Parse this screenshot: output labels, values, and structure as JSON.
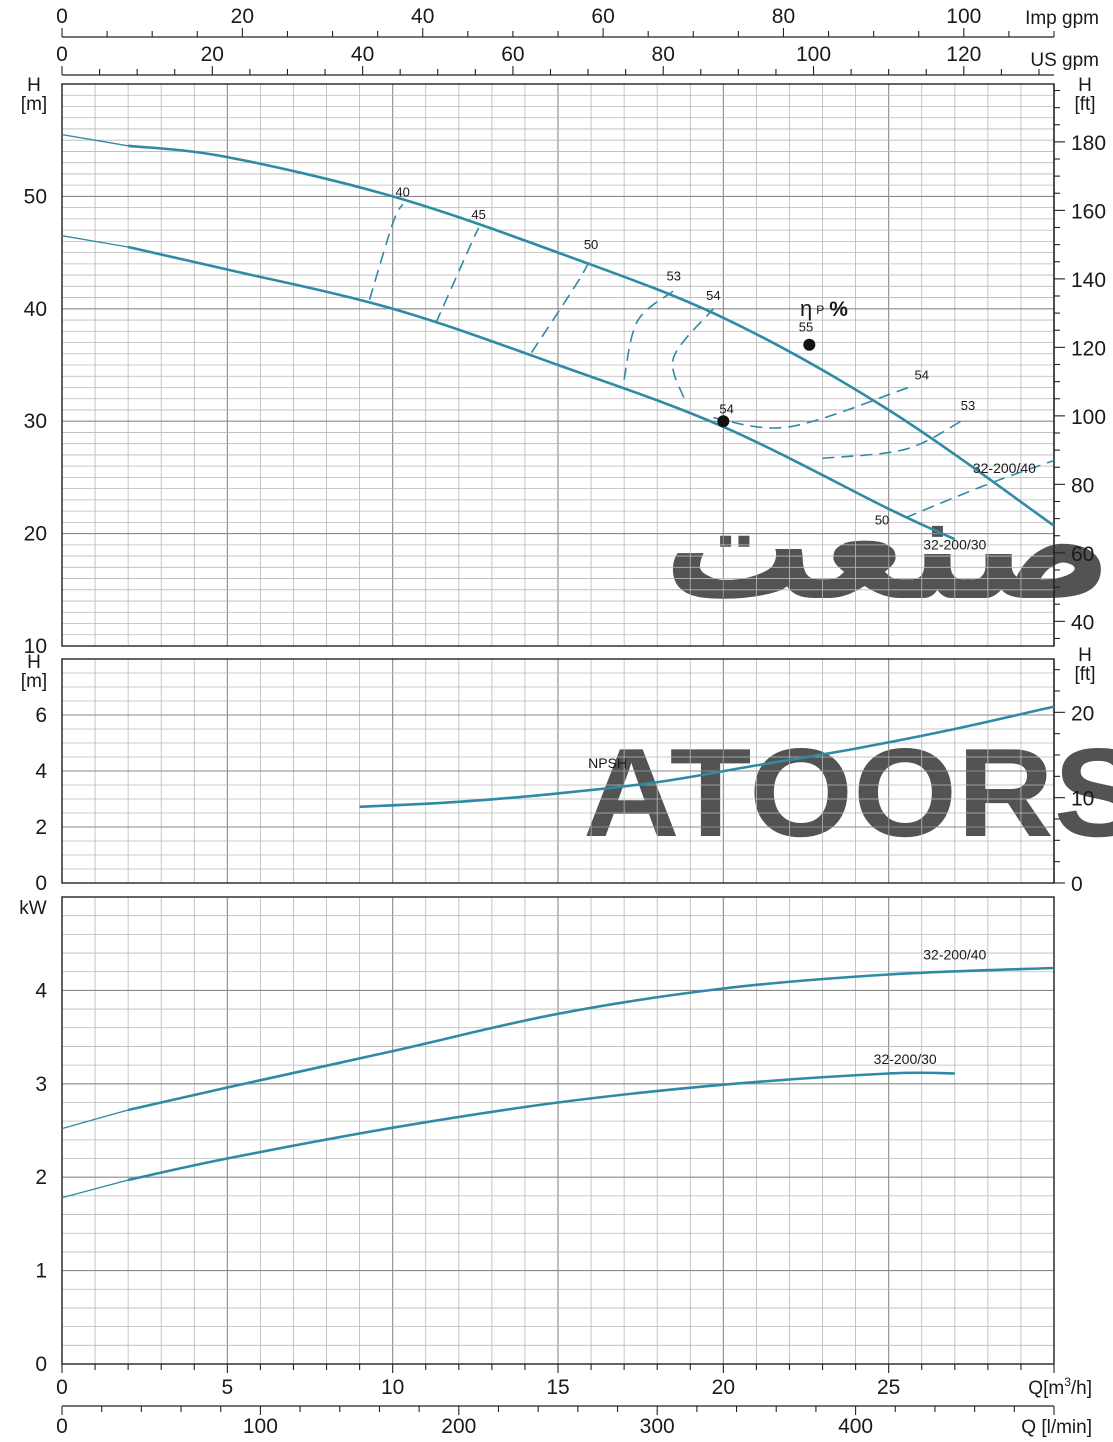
{
  "watermark": {
    "text_ar": "صنعت",
    "text_en": "ATOORS",
    "color": "#dcb6e6"
  },
  "colors": {
    "curve": "#2f8aa6",
    "grid": "#b8b8b8",
    "grid_major": "#8a8a8a",
    "axis": "#222222",
    "point": "#111111"
  },
  "axes": {
    "q_m3h": {
      "label": "Q[m³/h]",
      "label_main": "Q[m",
      "label_sup": "3",
      "label_end": "/h]",
      "ticks": [
        "0",
        "5",
        "10",
        "15",
        "20",
        "25"
      ],
      "range": [
        0,
        30
      ]
    },
    "q_lmin": {
      "label": "Q [l/min]",
      "ticks": [
        "0",
        "100",
        "200",
        "300",
        "400"
      ],
      "range": [
        0,
        500
      ]
    },
    "imp_gpm": {
      "label": "Imp gpm",
      "ticks": [
        "0",
        "20",
        "40",
        "60",
        "80",
        "100"
      ],
      "range": [
        0,
        110
      ]
    },
    "us_gpm": {
      "label": "US gpm",
      "ticks": [
        "0",
        "20",
        "40",
        "60",
        "80",
        "100",
        "120"
      ],
      "range": [
        0,
        132
      ]
    },
    "head_m": {
      "label_top": "H",
      "label_unit": "[m]",
      "ticks": [
        "10",
        "20",
        "30",
        "40",
        "50"
      ],
      "range": [
        10,
        60
      ]
    },
    "head_ft": {
      "label_top": "H",
      "label_unit": "[ft]",
      "ticks": [
        "40",
        "60",
        "80",
        "100",
        "120",
        "140",
        "160",
        "180"
      ],
      "range": [
        32.8,
        196.9
      ]
    },
    "npsh_m": {
      "label_top": "H",
      "label_unit": "[m]",
      "ticks": [
        "0",
        "2",
        "4",
        "6"
      ],
      "range": [
        0,
        8
      ]
    },
    "npsh_ft": {
      "label_top": "H",
      "label_unit": "[ft]",
      "ticks": [
        "0",
        "10",
        "20"
      ],
      "range": [
        0,
        26.25
      ]
    },
    "power": {
      "label": "kW",
      "ticks": [
        "0",
        "1",
        "2",
        "3",
        "4"
      ],
      "range": [
        0,
        5
      ]
    }
  },
  "chart_data": [
    {
      "type": "line",
      "title": "",
      "xlabel": "Q[m³/h]",
      "ylabel": "H [m]",
      "xlim": [
        0,
        30
      ],
      "ylim": [
        10,
        60
      ],
      "grid": true,
      "series": [
        {
          "name": "32-200/40",
          "x": [
            0,
            2,
            5,
            10,
            15,
            20,
            25,
            30
          ],
          "y": [
            55.5,
            54.5,
            53.5,
            50.0,
            45.0,
            39.2,
            31.0,
            20.7
          ]
        },
        {
          "name": "32-200/30",
          "x": [
            0,
            2,
            5,
            10,
            15,
            20,
            25,
            27
          ],
          "y": [
            46.5,
            45.5,
            43.5,
            40.0,
            35.0,
            29.5,
            22.2,
            19.5
          ]
        }
      ],
      "efficiency": {
        "symbol": "η",
        "sub": "P",
        "unit": "%",
        "iso_lines": [
          {
            "label": "40",
            "pts": [
              [
                9.3,
                40.8
              ],
              [
                10.0,
                47.6
              ],
              [
                10.3,
                49.3
              ]
            ]
          },
          {
            "label": "45",
            "pts": [
              [
                11.3,
                38.7
              ],
              [
                12.3,
                45.3
              ],
              [
                12.6,
                47.2
              ]
            ]
          },
          {
            "label": "50",
            "pts": [
              [
                14.2,
                36.1
              ],
              [
                15.6,
                42.4
              ],
              [
                16.0,
                44.6
              ]
            ]
          },
          {
            "label": "53",
            "pts": [
              [
                17.0,
                33.7
              ],
              [
                17.4,
                38.9
              ],
              [
                18.5,
                41.6
              ]
            ]
          },
          {
            "label": "54",
            "pts": [
              [
                18.8,
                32.1
              ],
              [
                18.5,
                35.7
              ],
              [
                19.7,
                40.0
              ]
            ]
          },
          {
            "label": "54",
            "pts": [
              [
                19.7,
                30.3
              ],
              [
                22.0,
                29.5
              ],
              [
                25.6,
                33.0
              ]
            ]
          },
          {
            "label": "53",
            "pts": [
              [
                23.0,
                26.7
              ],
              [
                25.5,
                27.5
              ],
              [
                27.2,
                30.0
              ]
            ]
          },
          {
            "label": "50",
            "pts": [
              [
                25.5,
                21.4
              ],
              [
                28.0,
                24.4
              ],
              [
                30.0,
                26.5
              ]
            ]
          }
        ],
        "iso_labels": [
          {
            "text": "40",
            "x": 10.3,
            "y": 50.0
          },
          {
            "text": "45",
            "x": 12.6,
            "y": 48.0
          },
          {
            "text": "50",
            "x": 16.0,
            "y": 45.3
          },
          {
            "text": "53",
            "x": 18.5,
            "y": 42.5
          },
          {
            "text": "54",
            "x": 19.7,
            "y": 40.8
          },
          {
            "text": "55",
            "x": 22.5,
            "y": 38.0
          },
          {
            "text": "54",
            "x": 26.0,
            "y": 33.7
          },
          {
            "text": "53",
            "x": 27.4,
            "y": 31.0
          },
          {
            "text": "54",
            "x": 20.1,
            "y": 30.7
          },
          {
            "text": "50",
            "x": 24.8,
            "y": 20.8
          }
        ],
        "points": [
          {
            "x": 22.6,
            "y": 36.8
          },
          {
            "x": 20.0,
            "y": 30.0
          }
        ]
      },
      "curve_labels": [
        {
          "text": "32-200/40",
          "x": 28.5,
          "y": 25.4
        },
        {
          "text": "32-200/30",
          "x": 27.0,
          "y": 18.6
        }
      ]
    },
    {
      "type": "line",
      "title": "",
      "xlabel": "Q[m³/h]",
      "ylabel": "H [m]",
      "xlim": [
        0,
        30
      ],
      "ylim": [
        0,
        8
      ],
      "grid": true,
      "series": [
        {
          "name": "NPSH",
          "x": [
            9,
            12,
            15,
            18,
            21,
            24,
            27,
            30
          ],
          "y": [
            2.72,
            2.9,
            3.2,
            3.6,
            4.2,
            4.8,
            5.5,
            6.3
          ]
        }
      ],
      "labels": [
        {
          "text": "NPSH",
          "x": 16.5,
          "y": 4.1
        }
      ]
    },
    {
      "type": "line",
      "title": "",
      "xlabel": "Q[m³/h]",
      "ylabel": "kW",
      "xlim": [
        0,
        30
      ],
      "ylim": [
        0,
        5
      ],
      "grid": true,
      "series": [
        {
          "name": "32-200/40",
          "x": [
            0,
            2,
            5,
            10,
            15,
            20,
            25,
            30
          ],
          "y": [
            2.52,
            2.72,
            2.96,
            3.35,
            3.75,
            4.02,
            4.17,
            4.24
          ]
        },
        {
          "name": "32-200/30",
          "x": [
            0,
            2,
            5,
            10,
            15,
            20,
            25,
            27
          ],
          "y": [
            1.78,
            1.97,
            2.2,
            2.53,
            2.8,
            2.99,
            3.11,
            3.11
          ]
        }
      ],
      "labels": [
        {
          "text": "32-200/40",
          "x": 27.0,
          "y": 4.33
        },
        {
          "text": "32-200/30",
          "x": 25.5,
          "y": 3.21
        }
      ]
    }
  ]
}
